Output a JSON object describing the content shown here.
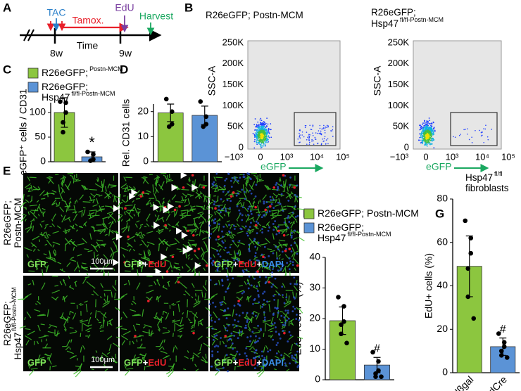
{
  "panel_labels": [
    "A",
    "B",
    "C",
    "D",
    "E",
    "F",
    "G"
  ],
  "timeline": {
    "tac": "TAC",
    "tamox": "Tamox.",
    "edu": "EdU",
    "harvest": "Harvest",
    "w8": "8w",
    "time": "Time",
    "w9": "9w"
  },
  "flow": {
    "y_label": "SSC-A",
    "x_label": "eGFP",
    "yticks": [
      "250K",
      "200K",
      "150K",
      "100K",
      "50K",
      "0"
    ],
    "xticks": [
      "−10³",
      "0",
      "10³",
      "10⁴",
      "10⁵"
    ],
    "plots": [
      {
        "title": [
          {
            "text": "R26eGFP; Postn-MCM"
          }
        ]
      },
      {
        "title": [
          {
            "text": "R26eGFP;"
          },
          {
            "text": "Hsp47",
            "sup": "fl/fl-Postn-MCM"
          }
        ]
      }
    ]
  },
  "chart_data": [
    {
      "type": "bar",
      "y_label": "eGFP⁺ cells / CD31",
      "categories": [
        null,
        null
      ],
      "values": [
        100,
        10
      ],
      "errors": [
        30,
        10
      ],
      "points": [
        [
          122,
          120,
          100,
          80,
          60
        ],
        [
          20,
          15,
          5,
          2
        ]
      ],
      "colors": [
        "#8cc63f",
        "#5b93d6"
      ],
      "ylim": [
        0,
        120
      ],
      "yticks": [
        0,
        50,
        100
      ],
      "annotation": "*",
      "legend": [
        [
          {
            "text": "R26eGFP;",
            "sup": "Postn-MCM"
          }
        ],
        [
          {
            "text": "R26eGFP;"
          },
          {
            "text": "Hsp47",
            "sup": "fl/fl-Postn-MCM"
          }
        ]
      ]
    },
    {
      "type": "bar",
      "y_label": "Rel. CD31 cells",
      "categories": [
        null,
        null
      ],
      "values": [
        19.5,
        18.5
      ],
      "errors": [
        3.5,
        3.7
      ],
      "points": [
        [
          25,
          20,
          15,
          14
        ],
        [
          24,
          18,
          15,
          14
        ]
      ],
      "colors": [
        "#8cc63f",
        "#5b93d6"
      ],
      "ylim": [
        0,
        23
      ],
      "yticks": [
        0,
        10,
        20
      ]
    },
    {
      "type": "bar",
      "y_label": "EdU⁺/eGFP⁺(%)",
      "categories": [
        null,
        null
      ],
      "values": [
        19.3,
        4.8
      ],
      "errors": [
        4.5,
        2.5
      ],
      "points": [
        [
          27,
          24,
          19,
          18,
          15,
          12
        ],
        [
          9,
          6,
          3,
          2,
          1,
          1
        ]
      ],
      "colors": [
        "#8cc63f",
        "#5b93d6"
      ],
      "ylim": [
        0,
        40
      ],
      "yticks": [
        0,
        10,
        20,
        30,
        40
      ],
      "annotation": "#",
      "legend": [
        [
          {
            "text": "R26eGFP; Postn-MCM"
          }
        ],
        [
          {
            "text": "R26eGFP;"
          },
          {
            "text": "Hsp47",
            "sup": "fl/fl-Postn-MCM"
          }
        ]
      ]
    },
    {
      "type": "bar",
      "y_label": "EdU+ cells (%)",
      "categories": [
        "Adβgal",
        "AdCre"
      ],
      "values": [
        49,
        12
      ],
      "errors": [
        14,
        4
      ],
      "points": [
        [
          70,
          62,
          55,
          48,
          35,
          25
        ],
        [
          18,
          14,
          12,
          10,
          8,
          7
        ]
      ],
      "colors": [
        "#8cc63f",
        "#5b93d6"
      ],
      "ylim": [
        0,
        80
      ],
      "yticks": [
        0,
        20,
        40,
        60,
        80
      ],
      "annotation": "#",
      "note": [
        {
          "text": "Hsp47",
          "sup": "fl/fl"
        },
        {
          "text": "fibroblasts"
        }
      ]
    }
  ],
  "micrographs": {
    "channels": [
      [
        {
          "text": "GFP",
          "color": "#7fe05a"
        }
      ],
      [
        {
          "text": "GFP",
          "color": "#7fe05a"
        },
        {
          "text": "+",
          "color": "#ffffff"
        },
        {
          "text": "EdU",
          "color": "#e8202a"
        }
      ],
      [
        {
          "text": "GFP",
          "color": "#7fe05a"
        },
        {
          "text": "+",
          "color": "#ffffff"
        },
        {
          "text": "EdU",
          "color": "#e8202a"
        },
        {
          "text": "+",
          "color": "#ffffff"
        },
        {
          "text": "DAPI",
          "color": "#3a8ee8"
        }
      ]
    ],
    "rows": [
      [
        {
          "text": "R26eGFP;"
        },
        {
          "text": "Postn-MCM"
        }
      ],
      [
        {
          "text": "R26eGFP;"
        },
        {
          "text": "Hsp47",
          "sup": "fl/fl-Postn-MCM"
        }
      ]
    ],
    "scale_bar": "100µm"
  }
}
